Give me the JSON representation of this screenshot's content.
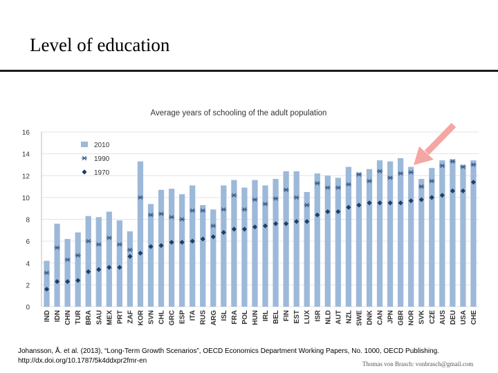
{
  "slide": {
    "title": "Level of education",
    "source_line1": "Johansson, Å. et al. (2013), “Long-Term Growth Scenarios”, OECD Economics Department Working Papers, No. 1000, OECD Publishing.",
    "source_line2": "http://dx.doi.org/10.1787/5k4ddxpr2fmr-en",
    "author": "Thomas von Brasch: vonbrasch@gmail.com"
  },
  "chart_data": {
    "type": "bar",
    "title": "Average years of schooling of the adult population",
    "xlabel": "",
    "ylabel": "",
    "ylim": [
      0,
      16
    ],
    "yticks": [
      0,
      2,
      4,
      6,
      8,
      10,
      12,
      14,
      16
    ],
    "legend_position": "top-left",
    "categories": [
      "IND",
      "IDN",
      "CHN",
      "TUR",
      "BRA",
      "SAU",
      "MEX",
      "PRT",
      "ZAF",
      "KOR",
      "SVN",
      "CHL",
      "GRC",
      "ESP",
      "ITA",
      "RUS",
      "ARG",
      "ISL",
      "FRA",
      "POL",
      "HUN",
      "IRL",
      "BEL",
      "FIN",
      "EST",
      "LUX",
      "ISR",
      "NLD",
      "AUT",
      "NZL",
      "SWE",
      "DNK",
      "CAN",
      "JPN",
      "GBR",
      "NOR",
      "SVK",
      "CZE",
      "AUS",
      "DEU",
      "USA",
      "CHE"
    ],
    "series": [
      {
        "name": "2010",
        "kind": "bar",
        "color": "#9db9d9",
        "values": [
          4.2,
          7.6,
          6.2,
          6.8,
          8.3,
          8.2,
          8.7,
          7.9,
          6.9,
          13.3,
          9.4,
          10.7,
          10.8,
          10.3,
          11.1,
          9.3,
          8.9,
          11.1,
          11.6,
          10.9,
          11.6,
          11.1,
          11.7,
          12.4,
          12.4,
          10.5,
          12.2,
          12.0,
          11.8,
          12.8,
          12.3,
          12.6,
          13.4,
          13.3,
          13.6,
          12.8,
          11.7,
          12.7,
          13.4,
          13.5,
          13.0,
          13.4
        ]
      },
      {
        "name": "1990",
        "kind": "marker",
        "marker": "star",
        "color": "#3d5f8c",
        "values": [
          3.1,
          5.4,
          4.3,
          4.7,
          6.0,
          5.7,
          6.3,
          5.7,
          5.2,
          10.0,
          8.4,
          8.5,
          8.2,
          8.0,
          8.8,
          8.8,
          7.4,
          8.9,
          10.2,
          8.9,
          9.8,
          9.4,
          9.9,
          10.7,
          10.0,
          9.3,
          11.3,
          10.9,
          10.9,
          11.2,
          12.1,
          11.5,
          12.4,
          11.8,
          12.2,
          12.3,
          11.0,
          11.5,
          12.9,
          13.3,
          12.8,
          13.0
        ]
      },
      {
        "name": "1970",
        "kind": "marker",
        "marker": "diamond",
        "color": "#1f3f6a",
        "values": [
          1.6,
          2.3,
          2.3,
          2.4,
          3.2,
          3.4,
          3.6,
          3.6,
          4.6,
          4.9,
          5.5,
          5.6,
          5.9,
          5.9,
          6.0,
          6.2,
          6.4,
          6.8,
          7.1,
          7.1,
          7.3,
          7.4,
          7.6,
          7.6,
          7.8,
          7.8,
          8.4,
          8.7,
          8.7,
          9.1,
          9.3,
          9.5,
          9.5,
          9.5,
          9.5,
          9.7,
          9.8,
          10.0,
          10.2,
          10.6,
          10.6,
          11.4
        ]
      }
    ],
    "annotation": "arrow pointing to NOR"
  }
}
